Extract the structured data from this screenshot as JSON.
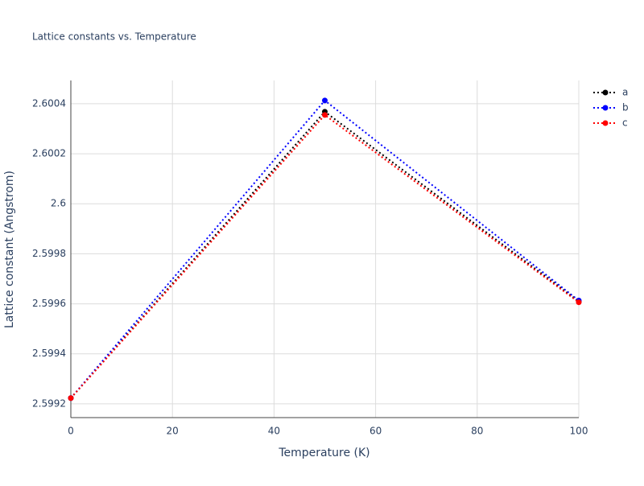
{
  "chart_data": {
    "type": "line",
    "title": "Lattice constants vs. Temperature",
    "x_label": "Temperature (K)",
    "y_label": "Lattice constant (Angstrom)",
    "x": [
      0,
      50,
      100
    ],
    "series": [
      {
        "name": "a",
        "color": "#000000",
        "values": [
          2.599223,
          2.600368,
          2.59961
        ]
      },
      {
        "name": "b",
        "color": "#0000ff",
        "values": [
          2.599223,
          2.600413,
          2.599613
        ]
      },
      {
        "name": "c",
        "color": "#ff0000",
        "values": [
          2.599223,
          2.600355,
          2.599606
        ]
      }
    ],
    "xlim": [
      0,
      100
    ],
    "xticks": [
      0,
      20,
      40,
      60,
      80,
      100
    ],
    "ylim": [
      2.599145,
      2.600493
    ],
    "yticks": [
      2.5992,
      2.5994,
      2.5996,
      2.5998,
      2.6,
      2.6002,
      2.6004
    ],
    "grid": true,
    "line_style": "dotted",
    "legend": "top-right"
  }
}
